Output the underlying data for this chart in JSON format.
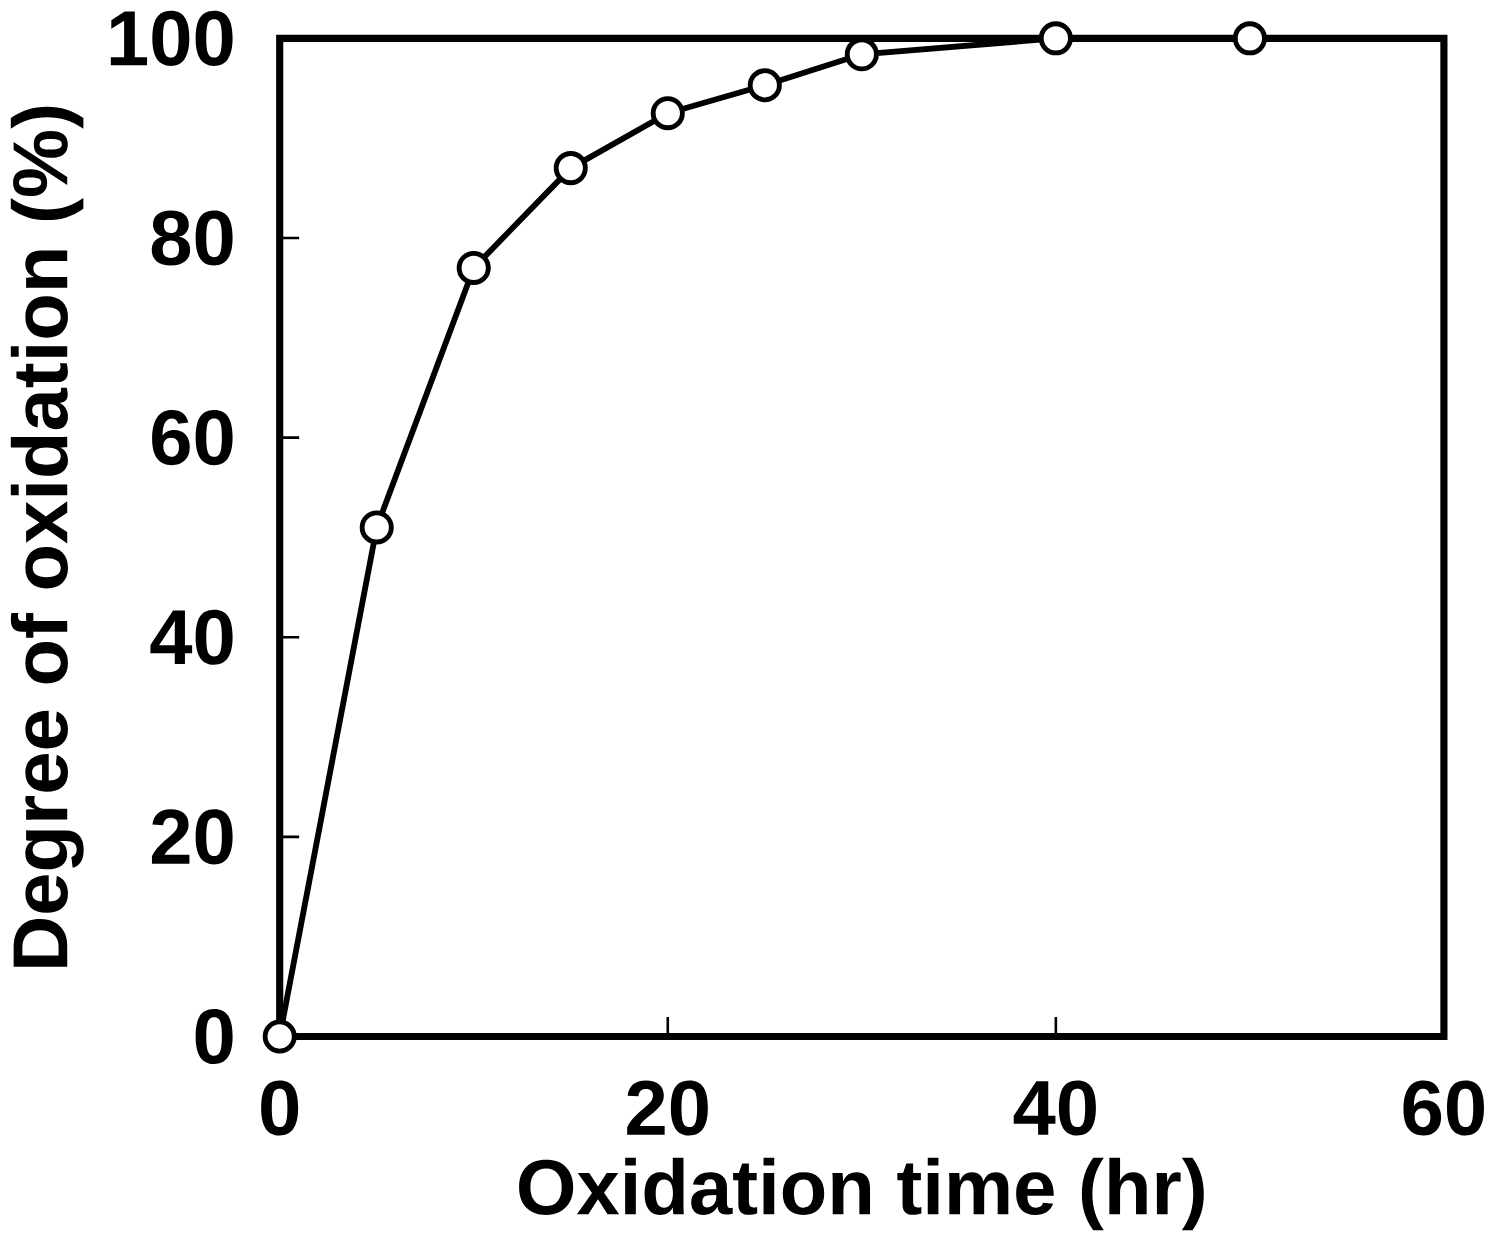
{
  "chart_data": {
    "type": "line",
    "xlabel": "Oxidation time (hr)",
    "ylabel": "Degree of oxidation (%)",
    "x": [
      0,
      5,
      10,
      15,
      20,
      25,
      30,
      40,
      50
    ],
    "series": [
      {
        "color": "#000000",
        "values": [
          0,
          51,
          77,
          87,
          92.5,
          95.3,
          98.4,
          100,
          100
        ]
      }
    ],
    "xlim": [
      0,
      60
    ],
    "ylim": [
      0,
      100
    ],
    "xticks": [
      0,
      20,
      40,
      60
    ],
    "yticks": [
      0,
      20,
      40,
      60,
      80,
      100
    ],
    "marker": "circle",
    "line_style": "solid",
    "grid": false
  }
}
